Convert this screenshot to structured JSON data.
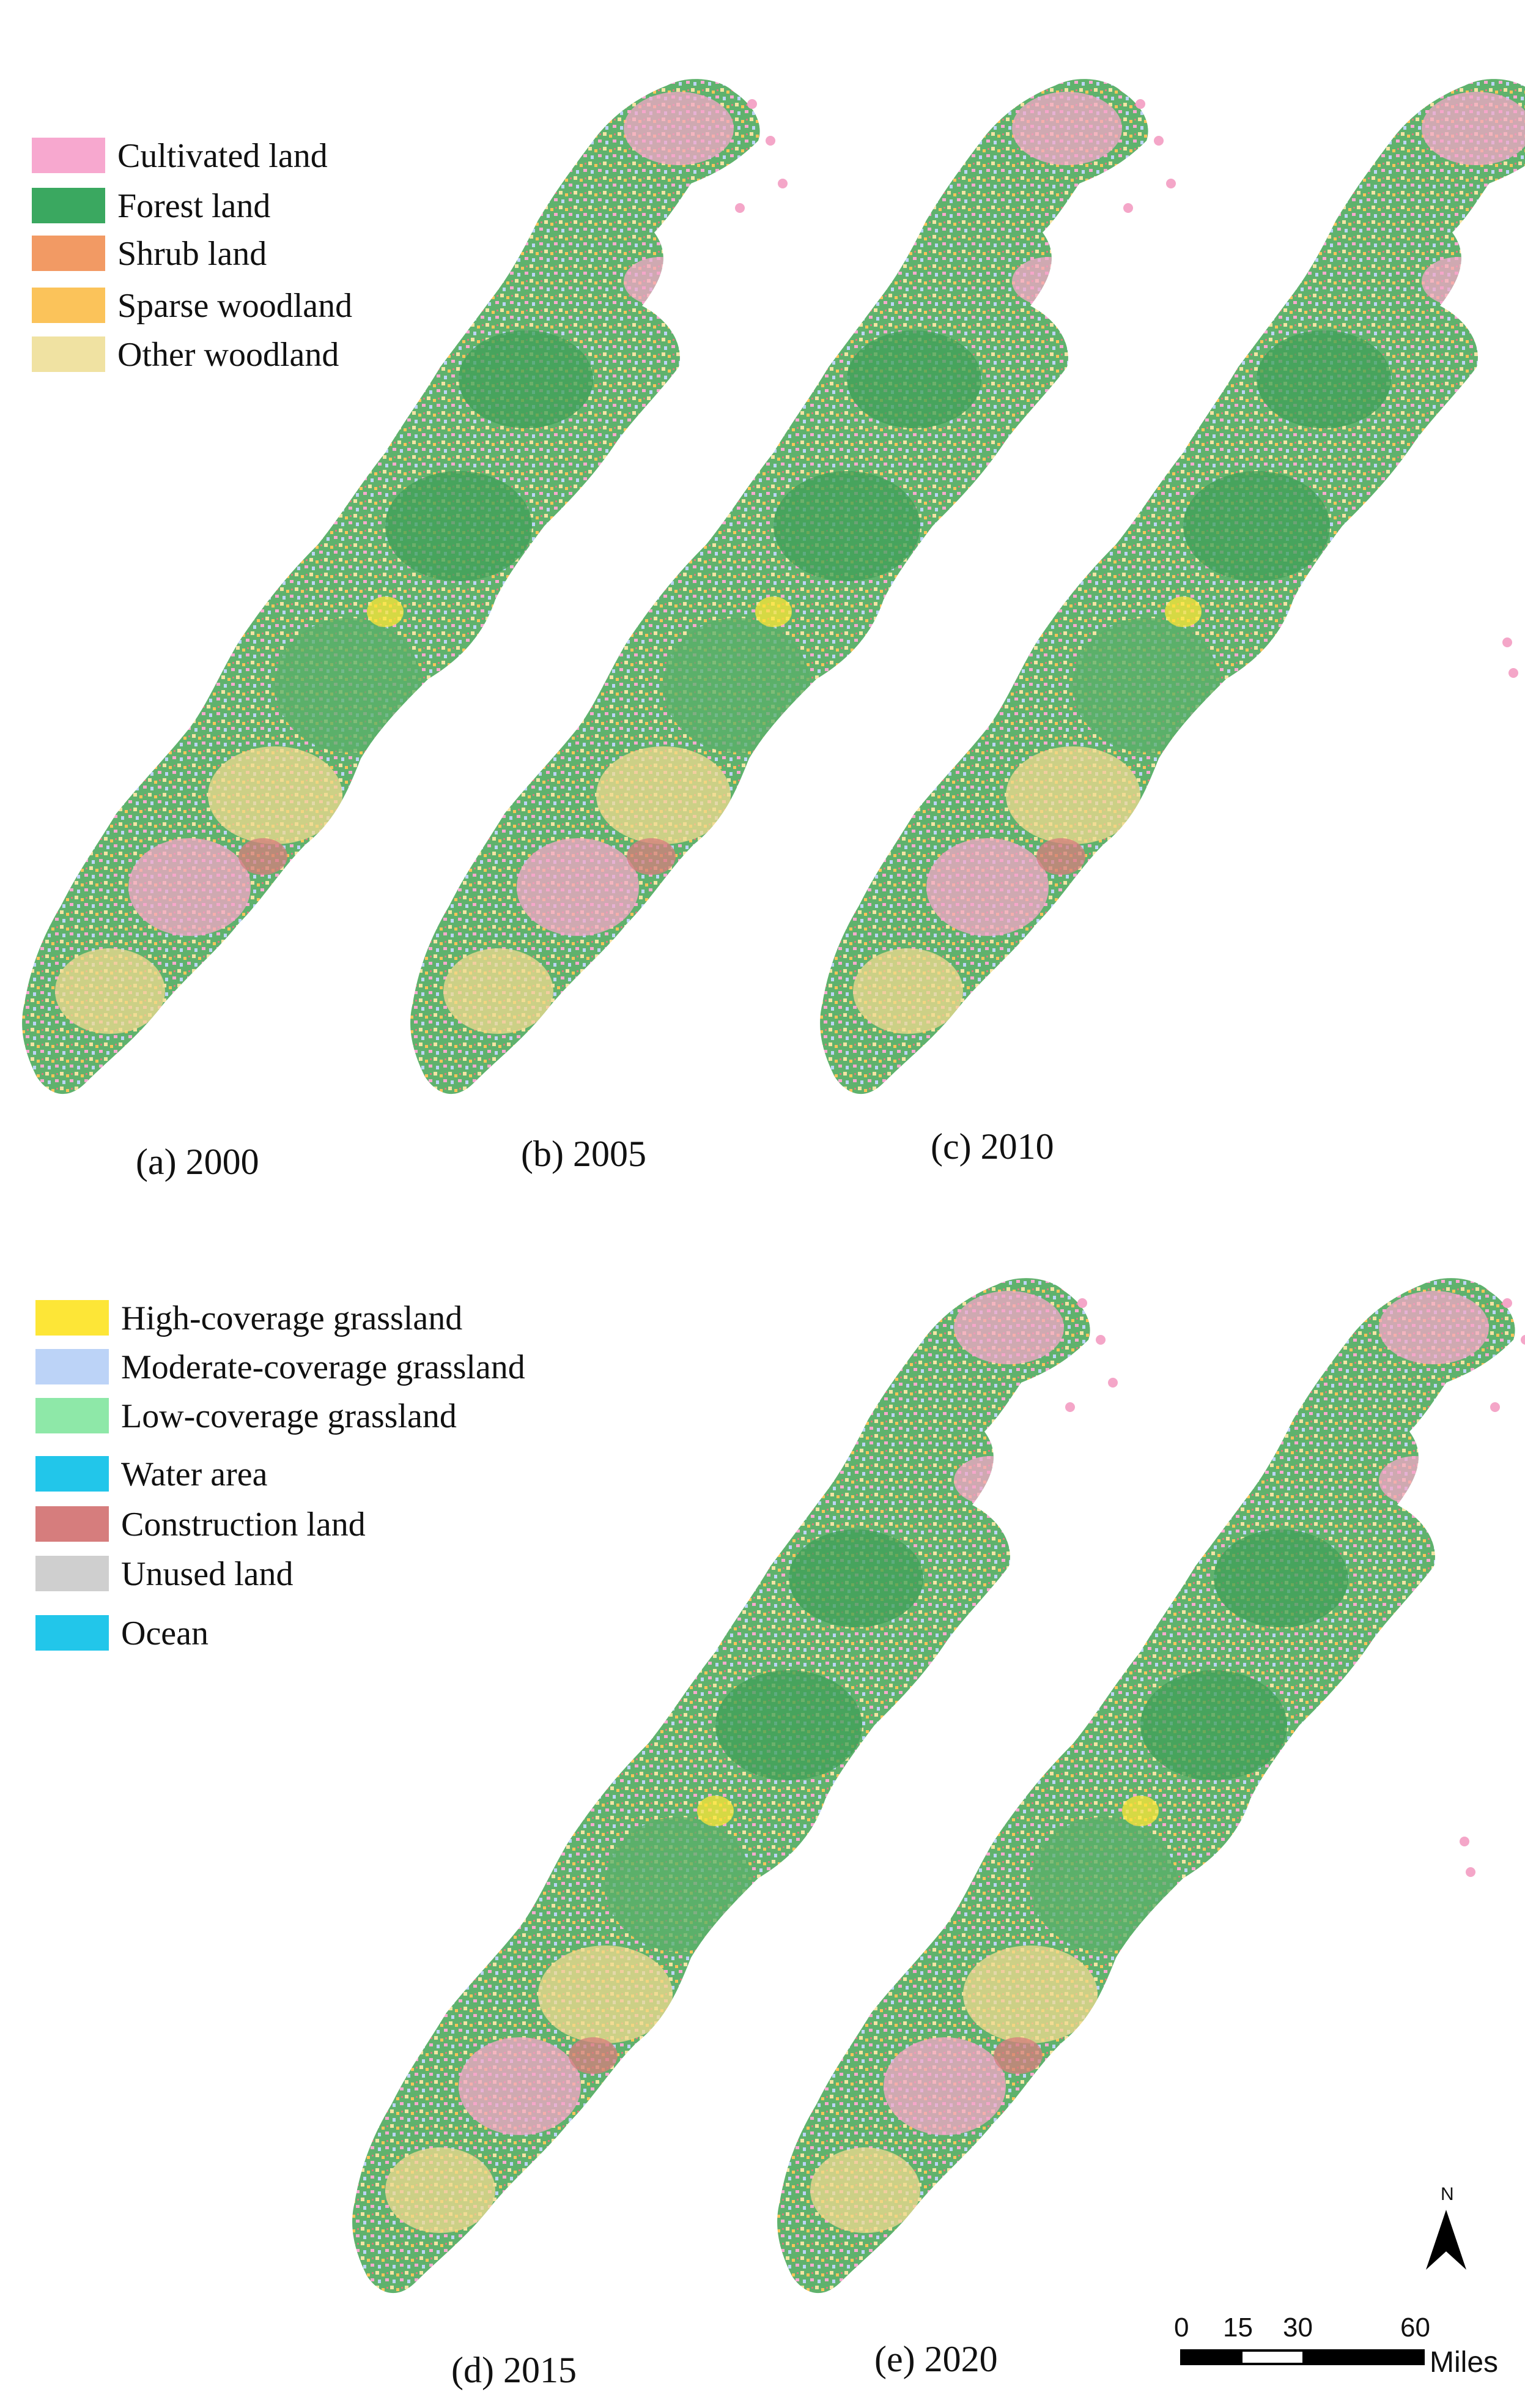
{
  "legend_top": [
    {
      "label": "Cultivated land",
      "color": "#f7a8cf"
    },
    {
      "label": "Forest land",
      "color": "#3aa860"
    },
    {
      "label": "Shrub land",
      "color": "#f29a64"
    },
    {
      "label": "Sparse woodland",
      "color": "#fbc35a"
    },
    {
      "label": "Other woodland",
      "color": "#f0e2a2"
    }
  ],
  "legend_bottom": [
    {
      "label": "High-coverage grassland",
      "color": "#fde637"
    },
    {
      "label": "Moderate-coverage grassland",
      "color": "#bcd3f7"
    },
    {
      "label": "Low-coverage grassland",
      "color": "#8ee8a8"
    },
    {
      "label": "Water area",
      "color": "#22c6ea"
    },
    {
      "label": "Construction land",
      "color": "#d67d7d"
    },
    {
      "label": "Unused land",
      "color": "#cfcfcf"
    },
    {
      "label": "Ocean",
      "color": "#22c6ea"
    }
  ],
  "panels": [
    {
      "label": "(a) 2000"
    },
    {
      "label": "(b) 2005"
    },
    {
      "label": "(c) 2010"
    },
    {
      "label": "(d) 2015"
    },
    {
      "label": "(e) 2020"
    }
  ],
  "scale_bar": {
    "ticks": [
      "0",
      "15",
      "30",
      "60"
    ],
    "unit": "Miles"
  },
  "north_arrow": {
    "letter": "N"
  }
}
